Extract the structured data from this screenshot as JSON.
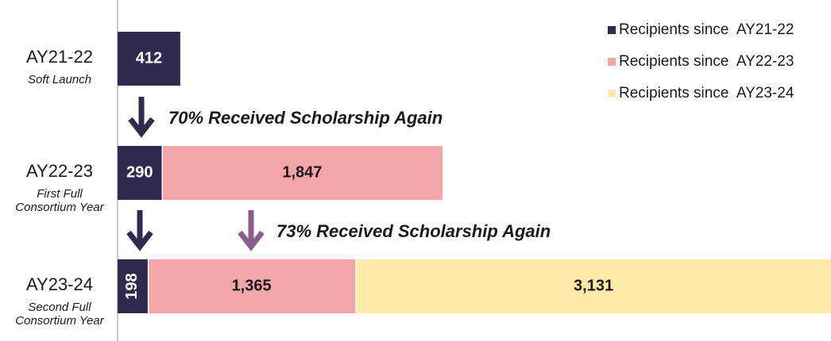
{
  "chart_data": {
    "type": "stacked-bar-horizontal",
    "categories": [
      "AY21-22",
      "AY22-23",
      "AY23-24"
    ],
    "category_notes": [
      [
        "Soft Launch"
      ],
      [
        "First Full",
        "Consortium Year"
      ],
      [
        "Second Full",
        "Consortium Year"
      ]
    ],
    "series": [
      {
        "name": "Recipients since  AY21-22",
        "color": "#2e2a50",
        "label_color": "#ffffff",
        "values": [
          412,
          290,
          198
        ],
        "value_labels": [
          "412",
          "290",
          "198"
        ]
      },
      {
        "name": "Recipients since  AY22-23",
        "color": "#f4a5a7",
        "label_color": "#1a1a1a",
        "values": [
          null,
          1847,
          1365
        ],
        "value_labels": [
          null,
          "1,847",
          "1,365"
        ]
      },
      {
        "name": "Recipients since  AY23-24",
        "color": "#fdeaa8",
        "label_color": "#1a1a1a",
        "values": [
          null,
          null,
          3131
        ],
        "value_labels": [
          null,
          null,
          "3,131"
        ]
      }
    ],
    "xlim": [
      0,
      4700
    ],
    "annotations": [
      "70% Received Scholarship Again",
      "73% Received Scholarship Again"
    ],
    "legend": "top-right"
  }
}
